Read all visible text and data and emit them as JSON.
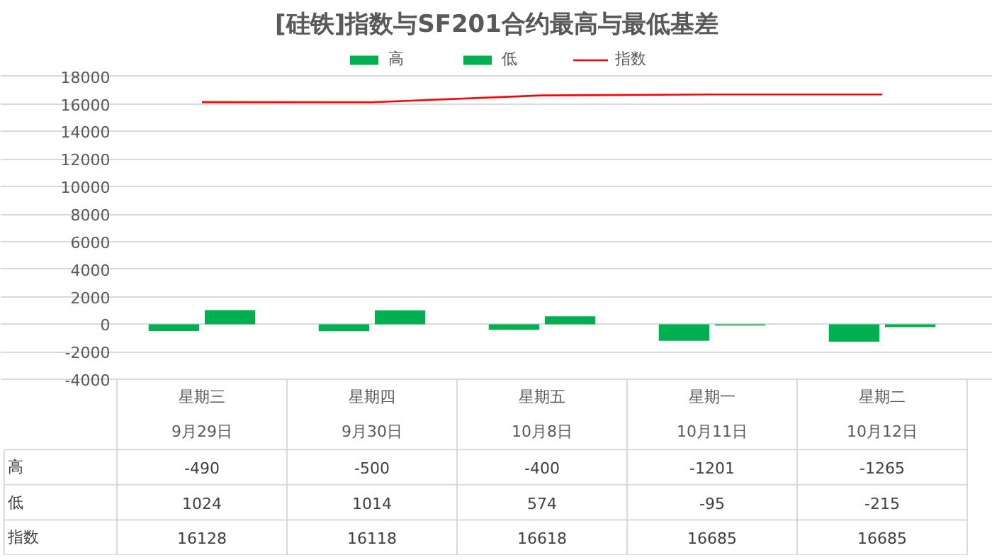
{
  "chart_data": {
    "type": "bar",
    "title": "[硅铁]指数与SF201合约最高与最低基差",
    "categories": [
      "星期三\n9月29日",
      "星期四\n9月30日",
      "星期五\n10月8日",
      "星期一\n10月11日",
      "星期二\n10月12日"
    ],
    "series": [
      {
        "name": "高",
        "color": "#00b050",
        "values": [
          -490,
          -500,
          -400,
          -1201,
          -1265
        ]
      },
      {
        "name": "低",
        "color": "#00b050",
        "values": [
          1024,
          1014,
          574,
          -95,
          -215
        ]
      },
      {
        "name": "指数",
        "type": "line",
        "color": "#ff0000",
        "values": [
          16128,
          16118,
          16618,
          16685,
          16685
        ]
      }
    ],
    "ylim": [
      -4000,
      18000
    ],
    "yticks": [
      -4000,
      -2000,
      0,
      2000,
      4000,
      6000,
      8000,
      10000,
      12000,
      14000,
      16000,
      18000
    ],
    "grid": "y",
    "legend": "top",
    "line_style": "solid",
    "data_labels": true
  }
}
